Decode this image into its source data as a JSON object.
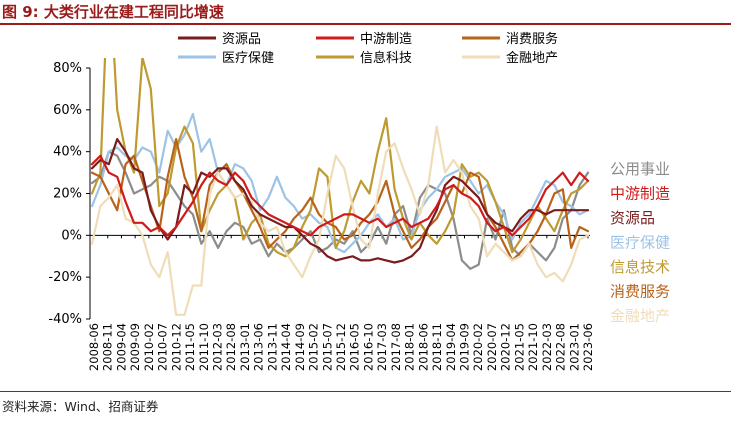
{
  "figure_label": "图 9:",
  "figure_title": "大类行业在建工程同比增速",
  "source": "资料来源：Wind、招商证券",
  "chart_data": {
    "type": "line",
    "title": "",
    "xlabel": "",
    "ylabel": "",
    "ylim": [
      -40,
      80
    ],
    "y_ticks": [
      -40,
      -20,
      0,
      20,
      40,
      60,
      80
    ],
    "y_tick_labels": [
      "-40%",
      "-20%",
      "0%",
      "20%",
      "40%",
      "60%",
      "80%"
    ],
    "x_tick_labels": [
      "2008-06",
      "2008-11",
      "2009-04",
      "2009-09",
      "2010-02",
      "2010-07",
      "2010-12",
      "2011-05",
      "2011-10",
      "2012-03",
      "2012-08",
      "2013-01",
      "2013-06",
      "2013-11",
      "2014-04",
      "2014-09",
      "2015-02",
      "2015-07",
      "2015-12",
      "2016-05",
      "2016-10",
      "2017-03",
      "2017-08",
      "2018-01",
      "2018-06",
      "2018-11",
      "2019-04",
      "2019-09",
      "2020-02",
      "2020-07",
      "2020-12",
      "2021-05",
      "2021-10",
      "2022-03",
      "2022-08",
      "2023-01",
      "2023-06"
    ],
    "grid": false,
    "legend_top": [
      {
        "name": "资源品",
        "color": "#7A1C1C"
      },
      {
        "name": "中游制造",
        "color": "#D11A1A"
      },
      {
        "name": "消费服务",
        "color": "#B8621A"
      },
      {
        "name": "医疗保健",
        "color": "#9DC3E6"
      },
      {
        "name": "信息科技",
        "color": "#BF9A30"
      },
      {
        "name": "金融地产",
        "color": "#EFDDB8"
      }
    ],
    "right_labels": [
      {
        "name": "公用事业",
        "color": "#8C8C8C"
      },
      {
        "name": "中游制造",
        "color": "#D11A1A"
      },
      {
        "name": "资源品",
        "color": "#7A1C1C"
      },
      {
        "name": "医疗保健",
        "color": "#9DC3E6"
      },
      {
        "name": "信息技术",
        "color": "#BF9A30"
      },
      {
        "name": "消费服务",
        "color": "#B8621A"
      },
      {
        "name": "金融地产",
        "color": "#EFDDB8"
      }
    ],
    "series": [
      {
        "key": "utilities",
        "color": "#8C8C8C",
        "values": [
          25,
          28,
          40,
          38,
          30,
          20,
          22,
          24,
          28,
          26,
          20,
          14,
          10,
          -4,
          2,
          -6,
          2,
          6,
          4,
          -4,
          -2,
          -10,
          -4,
          -8,
          -6,
          -2,
          2,
          -8,
          -6,
          -2,
          -4,
          2,
          -8,
          -4,
          4,
          -4,
          10,
          14,
          0,
          18,
          24,
          22,
          20,
          8,
          -12,
          -16,
          -14,
          8,
          -2,
          12,
          -6,
          -10,
          -4,
          -8,
          -12,
          -6,
          8,
          12,
          24,
          30
        ]
      },
      {
        "key": "health",
        "color": "#9DC3E6",
        "values": [
          14,
          24,
          40,
          42,
          38,
          36,
          42,
          40,
          30,
          50,
          42,
          48,
          58,
          40,
          46,
          30,
          24,
          34,
          32,
          26,
          12,
          18,
          28,
          18,
          14,
          8,
          10,
          6,
          4,
          -6,
          -8,
          -4,
          0,
          6,
          10,
          4,
          8,
          -2,
          0,
          12,
          18,
          22,
          28,
          30,
          32,
          26,
          20,
          24,
          16,
          10,
          -2,
          6,
          10,
          18,
          26,
          24,
          16,
          14,
          10,
          12
        ]
      },
      {
        "key": "tech",
        "color": "#BF9A30",
        "values": [
          20,
          30,
          130,
          60,
          40,
          30,
          85,
          70,
          14,
          20,
          42,
          52,
          44,
          2,
          12,
          20,
          24,
          18,
          -2,
          6,
          10,
          -4,
          -8,
          -10,
          -6,
          4,
          12,
          32,
          28,
          -6,
          2,
          16,
          26,
          20,
          40,
          56,
          22,
          8,
          -2,
          6,
          0,
          -4,
          2,
          10,
          34,
          28,
          30,
          26,
          16,
          4,
          -8,
          -2,
          6,
          14,
          8,
          2,
          12,
          20,
          22,
          26
        ]
      },
      {
        "key": "consumer",
        "color": "#B8621A",
        "values": [
          30,
          28,
          20,
          12,
          34,
          38,
          26,
          14,
          2,
          28,
          46,
          28,
          18,
          2,
          24,
          30,
          34,
          26,
          20,
          12,
          4,
          -6,
          -2,
          2,
          8,
          12,
          18,
          10,
          6,
          4,
          -2,
          0,
          6,
          10,
          16,
          26,
          10,
          2,
          -6,
          -2,
          4,
          8,
          16,
          24,
          20,
          30,
          28,
          10,
          4,
          -4,
          -12,
          -8,
          -4,
          2,
          10,
          20,
          22,
          -6,
          4,
          2
        ]
      },
      {
        "key": "realestate",
        "color": "#EFDDB8",
        "values": [
          -4,
          14,
          18,
          24,
          8,
          6,
          0,
          -14,
          -20,
          -8,
          -38,
          -38,
          -24,
          -24,
          20,
          30,
          24,
          18,
          20,
          16,
          6,
          2,
          4,
          -8,
          -14,
          -20,
          -10,
          -2,
          20,
          38,
          32,
          14,
          -2,
          -6,
          20,
          40,
          44,
          32,
          22,
          10,
          24,
          52,
          30,
          36,
          30,
          14,
          8,
          -10,
          -4,
          -8,
          -12,
          -10,
          -4,
          -14,
          -20,
          -18,
          -22,
          -14,
          -2,
          0
        ]
      },
      {
        "key": "resources",
        "color": "#7A1C1C",
        "values": [
          32,
          36,
          34,
          46,
          40,
          32,
          30,
          12,
          4,
          -2,
          4,
          24,
          20,
          30,
          28,
          32,
          32,
          26,
          22,
          14,
          10,
          8,
          6,
          4,
          4,
          0,
          -4,
          -6,
          -10,
          -12,
          -11,
          -10,
          -12,
          -12,
          -11,
          -12,
          -13,
          -12,
          -10,
          -6,
          4,
          12,
          24,
          28,
          26,
          22,
          18,
          10,
          6,
          4,
          2,
          8,
          12,
          12,
          10,
          12,
          12,
          12,
          12,
          12
        ]
      },
      {
        "key": "midstream",
        "color": "#D11A1A",
        "values": [
          34,
          38,
          30,
          28,
          16,
          6,
          6,
          2,
          4,
          0,
          4,
          10,
          16,
          24,
          30,
          26,
          24,
          30,
          26,
          18,
          14,
          10,
          8,
          6,
          4,
          2,
          0,
          4,
          6,
          8,
          10,
          10,
          8,
          6,
          8,
          4,
          6,
          8,
          4,
          6,
          8,
          14,
          22,
          24,
          20,
          18,
          14,
          6,
          2,
          4,
          0,
          4,
          8,
          14,
          22,
          26,
          30,
          24,
          30,
          26
        ]
      }
    ]
  }
}
